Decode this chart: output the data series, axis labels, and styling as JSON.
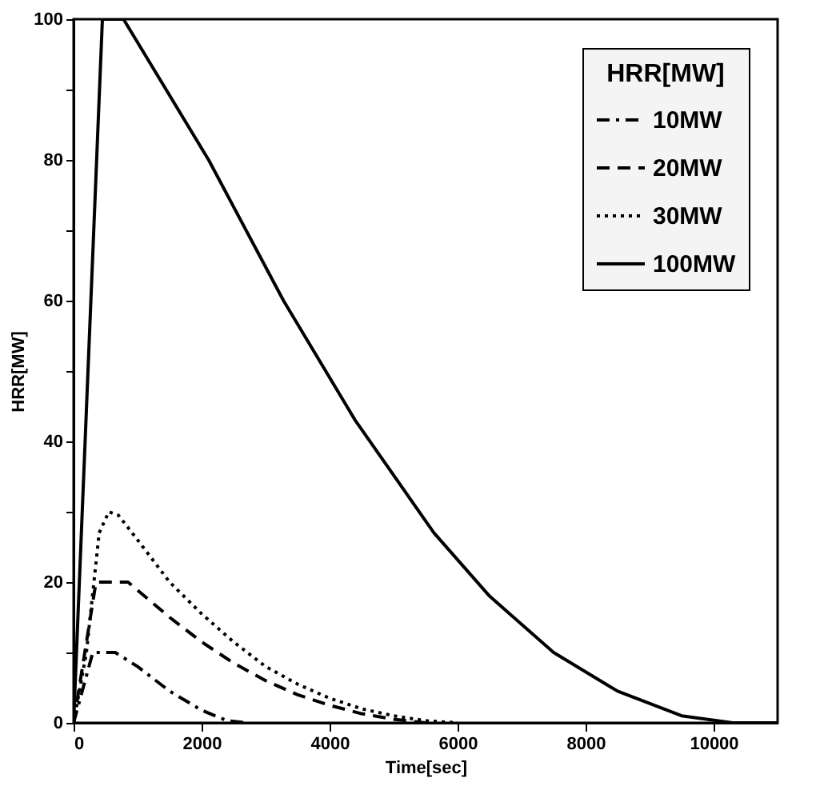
{
  "chart_data": {
    "type": "line",
    "xlabel": "Time[sec]",
    "ylabel": "HRR[MW]",
    "legend_title": "HRR[MW]",
    "legend": "top right",
    "grid": false,
    "xlim": [
      0,
      11000
    ],
    "xticks": [
      0,
      2000,
      4000,
      6000,
      8000,
      10000
    ],
    "ylim": [
      0,
      100
    ],
    "yticks": [
      0,
      {
        "value": 10,
        "label": null
      },
      20,
      {
        "value": 30,
        "label": null
      },
      40,
      {
        "value": 50,
        "label": null
      },
      60,
      {
        "value": 70,
        "label": null
      },
      80,
      {
        "value": 90,
        "label": null
      },
      100
    ],
    "series": [
      {
        "name": "10MW",
        "color": "#000000",
        "line_style": "dashdot",
        "x": [
          0,
          300,
          650,
          1000,
          1500,
          2000,
          2400,
          2700
        ],
        "values": [
          0,
          10,
          10,
          8,
          4.5,
          1.8,
          0.3,
          0
        ]
      },
      {
        "name": "20MW",
        "color": "#000000",
        "line_style": "dashed",
        "x": [
          0,
          350,
          850,
          1500,
          2000,
          2500,
          3000,
          3500,
          4000,
          4500,
          5000,
          5500
        ],
        "values": [
          0,
          20,
          20,
          15,
          11.5,
          8.5,
          6,
          4,
          2.5,
          1.3,
          0.5,
          0
        ]
      },
      {
        "name": "30MW",
        "color": "#000000",
        "line_style": "dotted",
        "x": [
          0,
          200,
          400,
          550,
          700,
          1000,
          1500,
          2000,
          2500,
          3000,
          3500,
          4000,
          4500,
          5000,
          5500,
          6000
        ],
        "values": [
          0,
          10,
          27,
          30,
          29.5,
          26,
          20,
          15.5,
          11.5,
          8,
          5.5,
          3.5,
          2,
          1,
          0.3,
          0
        ]
      },
      {
        "name": "100MW",
        "color": "#000000",
        "line_style": "solid",
        "x": [
          0,
          450,
          780,
          2110,
          3280,
          4400,
          5630,
          6500,
          7500,
          8500,
          9500,
          10300,
          11000
        ],
        "values": [
          0,
          100,
          100,
          80,
          60,
          43,
          27,
          18,
          10,
          4.5,
          1,
          0,
          0
        ]
      }
    ]
  }
}
